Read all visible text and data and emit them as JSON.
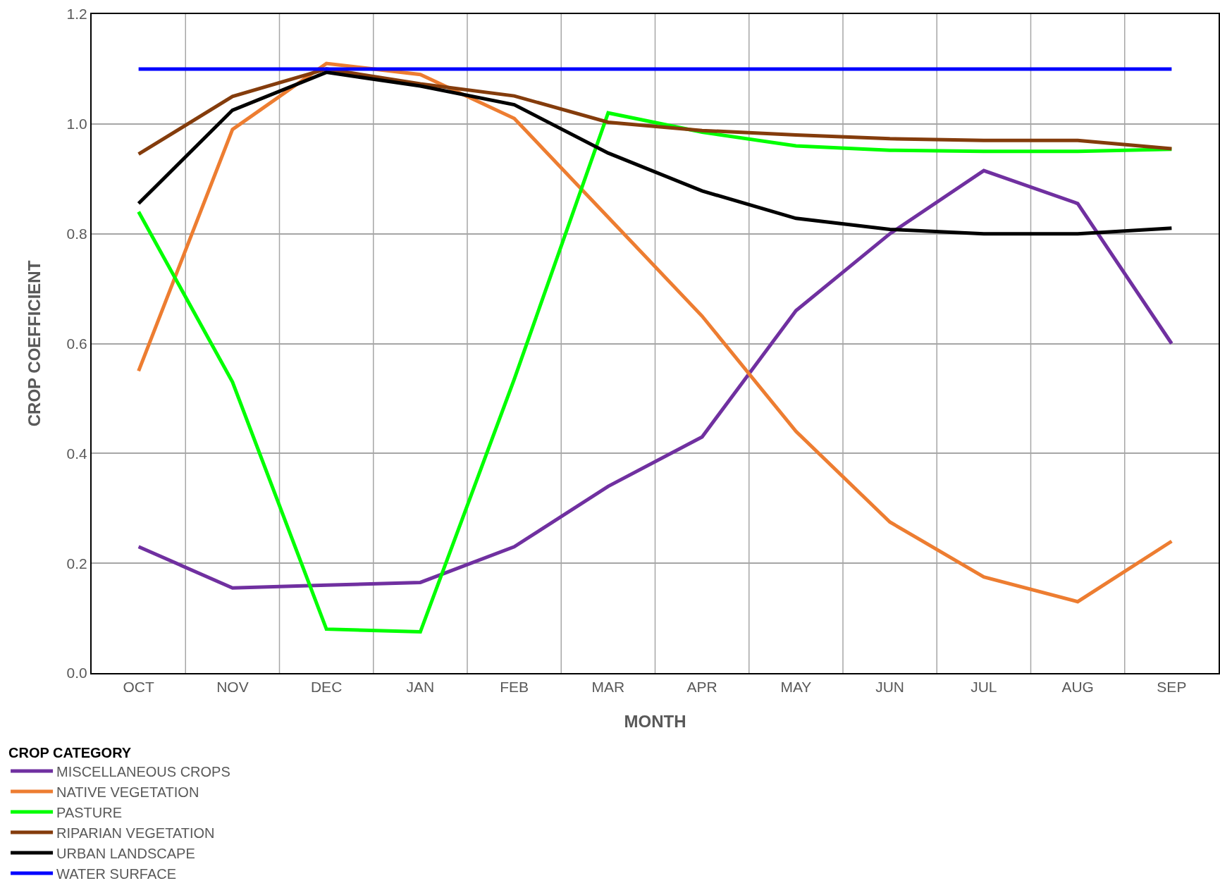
{
  "chart_data": {
    "type": "line",
    "xlabel": "MONTH",
    "ylabel": "CROP COEFFICIENT",
    "legend_title": "CROP CATEGORY",
    "categories": [
      "OCT",
      "NOV",
      "DEC",
      "JAN",
      "FEB",
      "MAR",
      "APR",
      "MAY",
      "JUN",
      "JUL",
      "AUG",
      "SEP"
    ],
    "ylim": [
      0,
      1.2
    ],
    "yticks": [
      {
        "value": 0,
        "label": "0.0"
      },
      {
        "value": 0.2,
        "label": "0.2"
      },
      {
        "value": 0.4,
        "label": "0.4"
      },
      {
        "value": 0.6,
        "label": "0.6"
      },
      {
        "value": 0.8,
        "label": "0.8"
      },
      {
        "value": 1,
        "label": "1.0"
      },
      {
        "value": 1.2,
        "label": "1.2"
      }
    ],
    "grid": true,
    "legend": "bottom left",
    "marker": "none",
    "line_style": "solid",
    "series": [
      {
        "name": "MISCELLANEOUS CROPS",
        "color": "#7030a0",
        "values": [
          0.23,
          0.155,
          0.16,
          0.165,
          0.23,
          0.34,
          0.43,
          0.66,
          0.8,
          0.915,
          0.855,
          0.6
        ]
      },
      {
        "name": "NATIVE VEGETATION",
        "color": "#ed7d31",
        "values": [
          0.55,
          0.99,
          1.11,
          1.09,
          1.01,
          0.83,
          0.65,
          0.44,
          0.275,
          0.175,
          0.13,
          0.24
        ]
      },
      {
        "name": "PASTURE",
        "color": "#00ff00",
        "values": [
          0.84,
          0.53,
          0.08,
          0.075,
          0.535,
          1.02,
          0.985,
          0.96,
          0.952,
          0.95,
          0.95,
          0.954
        ]
      },
      {
        "name": "RIPARIAN VEGETATION",
        "color": "#843c0c",
        "values": [
          0.945,
          1.05,
          1.1,
          1.073,
          1.051,
          1.003,
          0.988,
          0.98,
          0.973,
          0.97,
          0.97,
          0.955
        ]
      },
      {
        "name": "URBAN LANDSCAPE",
        "color": "#000000",
        "values": [
          0.855,
          1.025,
          1.094,
          1.069,
          1.035,
          0.947,
          0.878,
          0.828,
          0.808,
          0.8,
          0.8,
          0.81
        ]
      },
      {
        "name": "WATER SURFACE",
        "color": "#0000ff",
        "values": [
          1.1,
          1.1,
          1.1,
          1.1,
          1.1,
          1.1,
          1.1,
          1.1,
          1.1,
          1.1,
          1.1,
          1.1
        ]
      }
    ]
  }
}
